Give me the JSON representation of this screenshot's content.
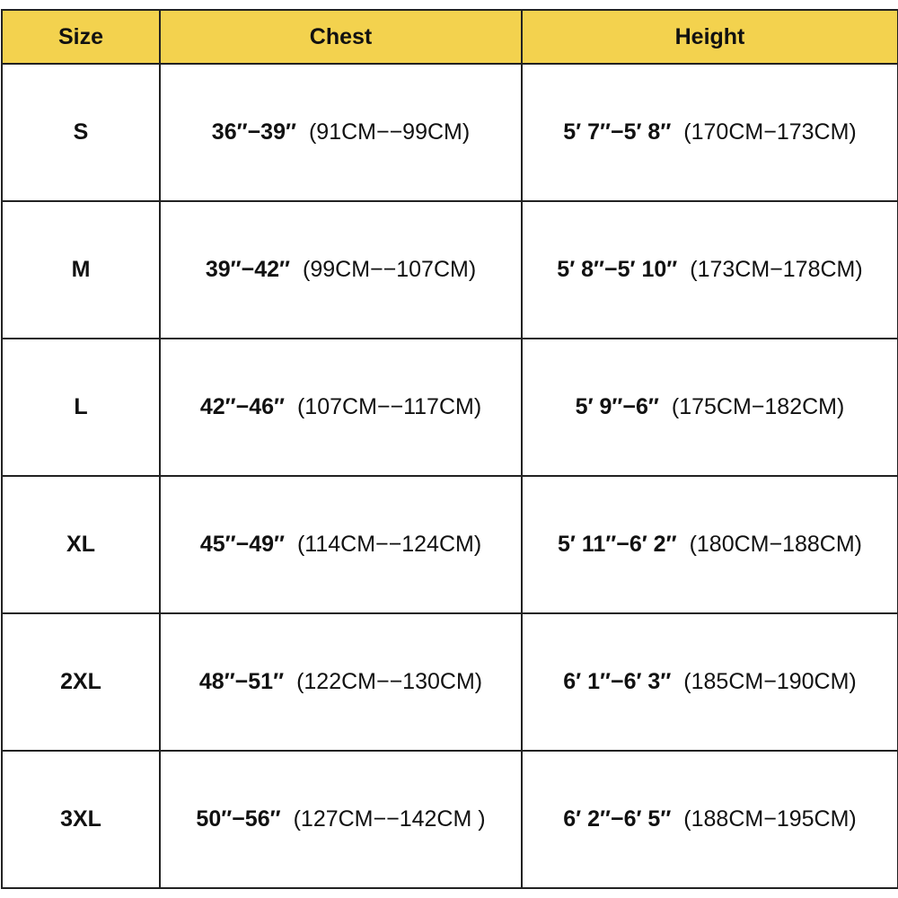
{
  "table": {
    "header": [
      "Size",
      "Chest",
      "Height"
    ],
    "rows": [
      {
        "size": "S",
        "chest": {
          "imperial": "36″−39″",
          "metric": "(91CM−−99CM)"
        },
        "height": {
          "imperial": "5′ 7″−5′ 8″",
          "metric": "(170CM−173CM)"
        }
      },
      {
        "size": "M",
        "chest": {
          "imperial": "39″−42″",
          "metric": "(99CM−−107CM)"
        },
        "height": {
          "imperial": "5′ 8″−5′ 10″",
          "metric": "(173CM−178CM)"
        }
      },
      {
        "size": "L",
        "chest": {
          "imperial": "42″−46″",
          "metric": "(107CM−−117CM)"
        },
        "height": {
          "imperial": "5′ 9″−6″",
          "metric": "(175CM−182CM)"
        }
      },
      {
        "size": "XL",
        "chest": {
          "imperial": "45″−49″",
          "metric": "(114CM−−124CM)"
        },
        "height": {
          "imperial": "5′ 11″−6′ 2″",
          "metric": "(180CM−188CM)"
        }
      },
      {
        "size": "2XL",
        "chest": {
          "imperial": "48″−51″",
          "metric": "(122CM−−130CM)"
        },
        "height": {
          "imperial": "6′ 1″−6′ 3″",
          "metric": "(185CM−190CM)"
        }
      },
      {
        "size": "3XL",
        "chest": {
          "imperial": "50″−56″",
          "metric": "(127CM−−142CM )"
        },
        "height": {
          "imperial": "6′ 2″−6′ 5″",
          "metric": "(188CM−195CM)"
        }
      }
    ]
  }
}
